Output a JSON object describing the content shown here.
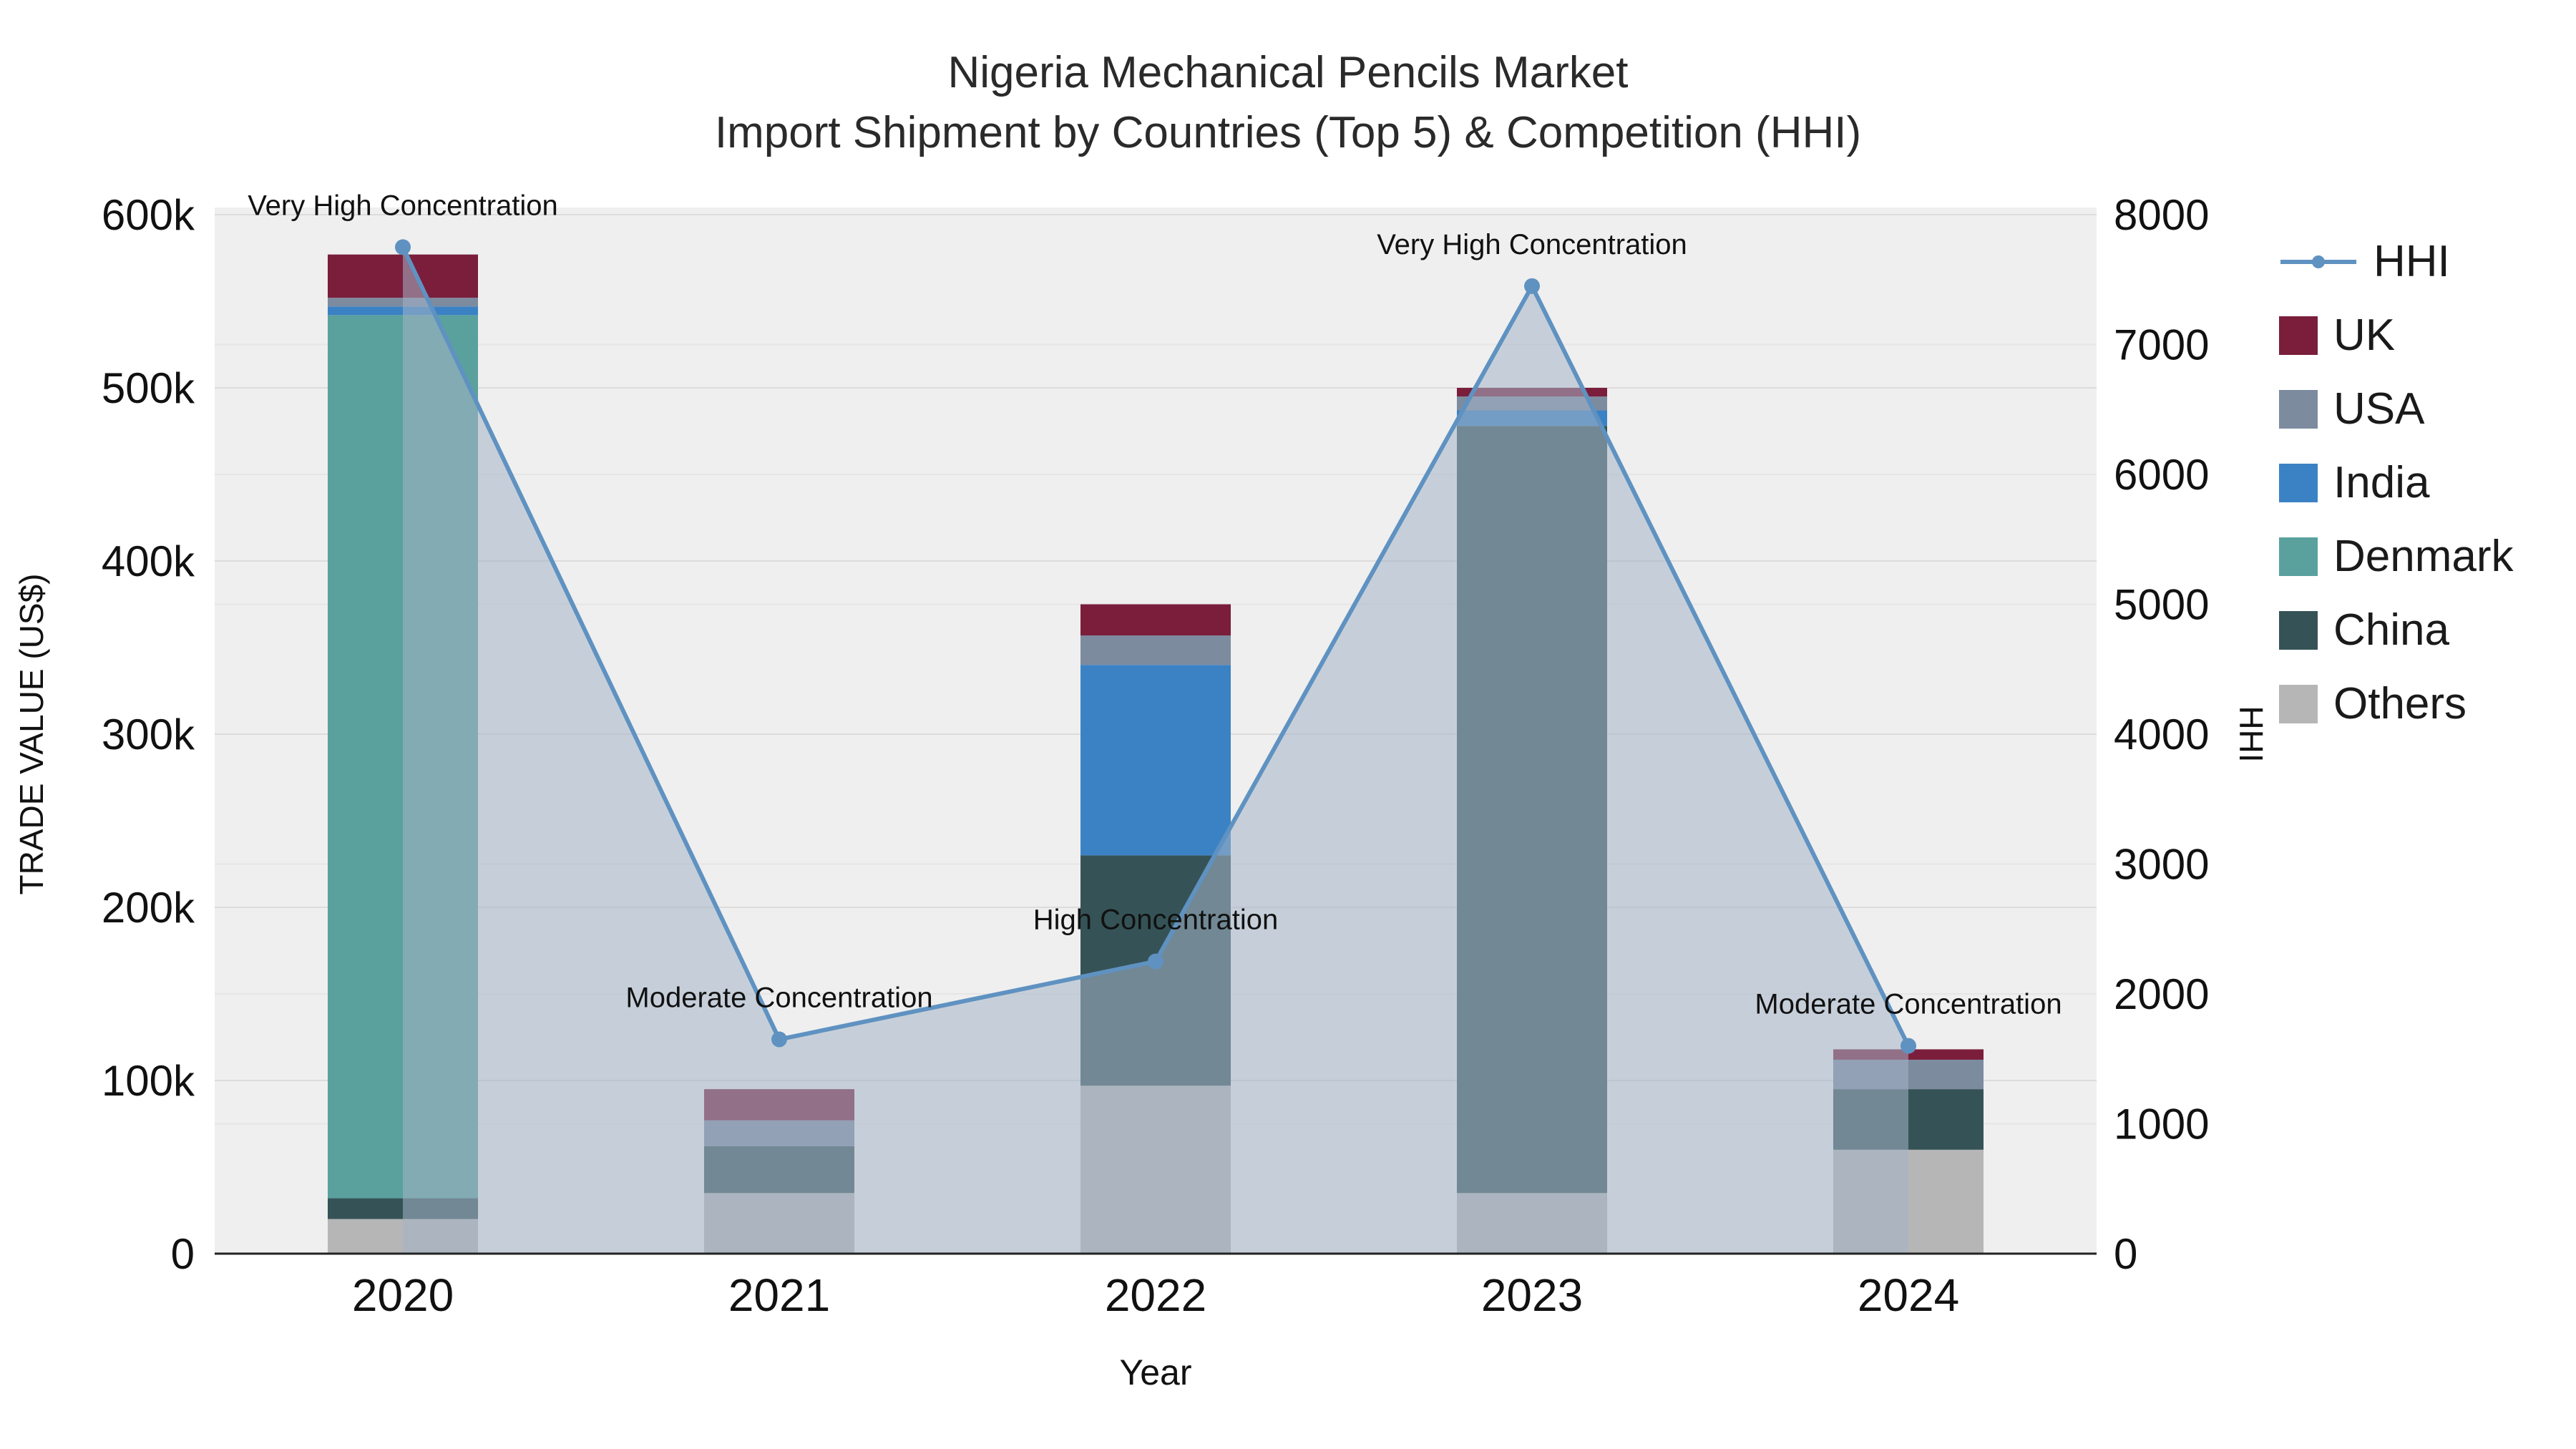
{
  "title": {
    "line1": "Nigeria Mechanical Pencils Market",
    "line2": "Import Shipment by Countries (Top 5) & Competition (HHI)"
  },
  "axes": {
    "left_label": "TRADE VALUE (US$)",
    "right_label": "HHI",
    "x_label": "Year"
  },
  "legend": {
    "items": [
      {
        "label": "HHI",
        "type": "line",
        "color": "#5f92c1"
      },
      {
        "label": "UK",
        "type": "swatch",
        "color": "#7a1e3c"
      },
      {
        "label": "USA",
        "type": "swatch",
        "color": "#7d8b9f"
      },
      {
        "label": "India",
        "type": "swatch",
        "color": "#3b82c4"
      },
      {
        "label": "Denmark",
        "type": "swatch",
        "color": "#5aa19e"
      },
      {
        "label": "China",
        "type": "swatch",
        "color": "#355357"
      },
      {
        "label": "Others",
        "type": "swatch",
        "color": "#b6b6b6"
      }
    ]
  },
  "chart_data": {
    "type": "bar+line",
    "categories": [
      "2020",
      "2021",
      "2022",
      "2023",
      "2024"
    ],
    "bar_series": [
      {
        "name": "Others",
        "color": "#b6b6b6",
        "values": [
          20000,
          35000,
          97000,
          35000,
          60000
        ]
      },
      {
        "name": "China",
        "color": "#355357",
        "values": [
          12000,
          27000,
          133000,
          443000,
          35000
        ]
      },
      {
        "name": "Denmark",
        "color": "#5aa19e",
        "values": [
          510000,
          0,
          0,
          0,
          0
        ]
      },
      {
        "name": "India",
        "color": "#3b82c4",
        "values": [
          5000,
          0,
          110000,
          9000,
          0
        ]
      },
      {
        "name": "USA",
        "color": "#7d8b9f",
        "values": [
          5000,
          15000,
          17000,
          8000,
          17000
        ]
      },
      {
        "name": "UK",
        "color": "#7a1e3c",
        "values": [
          25000,
          18000,
          18000,
          5000,
          6000
        ]
      }
    ],
    "line_series": {
      "name": "HHI",
      "color": "#5f92c1",
      "fill": "rgba(164,180,198,0.55)",
      "values": [
        7750,
        1650,
        2250,
        7450,
        1600
      ]
    },
    "annotations": [
      {
        "x": 0,
        "text": "Very High Concentration"
      },
      {
        "x": 1,
        "text": "Moderate Concentration"
      },
      {
        "x": 2,
        "text": "High Concentration"
      },
      {
        "x": 3,
        "text": "Very High Concentration"
      },
      {
        "x": 4,
        "text": "Moderate Concentration"
      }
    ],
    "left_axis": {
      "min": 0,
      "max": 600000,
      "tick_values": [
        0,
        100000,
        200000,
        300000,
        400000,
        500000,
        600000
      ],
      "tick_labels": [
        "0",
        "100k",
        "200k",
        "300k",
        "400k",
        "500k",
        "600k"
      ]
    },
    "right_axis": {
      "min": 0,
      "max": 8000,
      "tick_values": [
        0,
        1000,
        2000,
        3000,
        4000,
        5000,
        6000,
        7000,
        8000
      ],
      "tick_labels": [
        "0",
        "1000",
        "2000",
        "3000",
        "4000",
        "5000",
        "6000",
        "7000",
        "8000"
      ]
    },
    "layout_hints": {
      "plot_bg": "#efefef",
      "grid_left": "#dcdcdc",
      "grid_right": "#e6e6e6",
      "axis_line": "#222222",
      "legend_position": "right",
      "grid": true
    }
  }
}
